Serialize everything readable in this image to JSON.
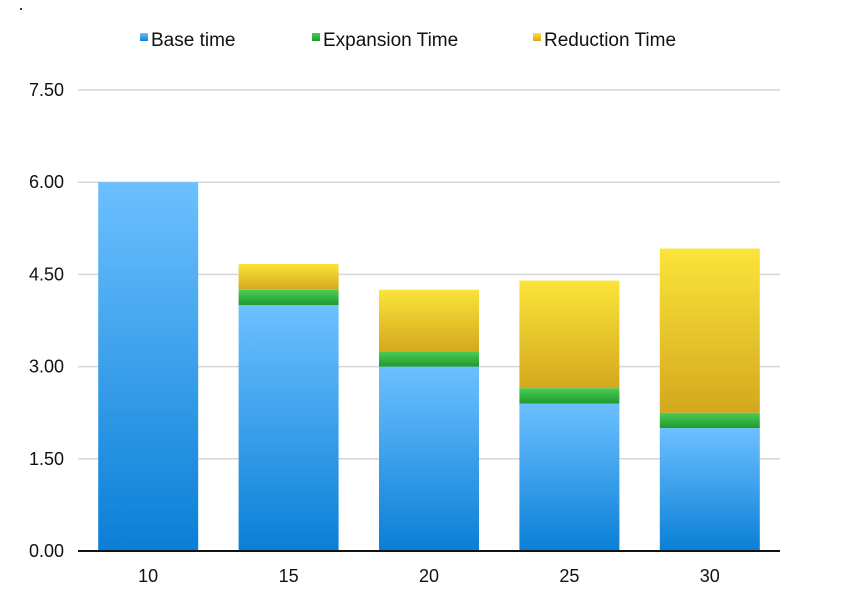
{
  "chart_data": {
    "type": "bar",
    "stacked": true,
    "categories": [
      "10",
      "15",
      "20",
      "25",
      "30"
    ],
    "series": [
      {
        "name": "Base time",
        "color": "#3aa0ee",
        "values": [
          6.0,
          4.0,
          3.0,
          2.4,
          2.0
        ]
      },
      {
        "name": "Expansion Time",
        "color": "#2fae3c",
        "values": [
          0.0,
          0.25,
          0.25,
          0.25,
          0.25
        ]
      },
      {
        "name": "Reduction Time",
        "color": "#e8c22a",
        "values": [
          0.0,
          0.42,
          1.0,
          1.75,
          2.67
        ]
      }
    ],
    "ylim": [
      0,
      7.5
    ],
    "yticks": [
      "0.00",
      "1.50",
      "3.00",
      "4.50",
      "6.00",
      "7.50"
    ],
    "grid": true,
    "legend_position": "top"
  }
}
